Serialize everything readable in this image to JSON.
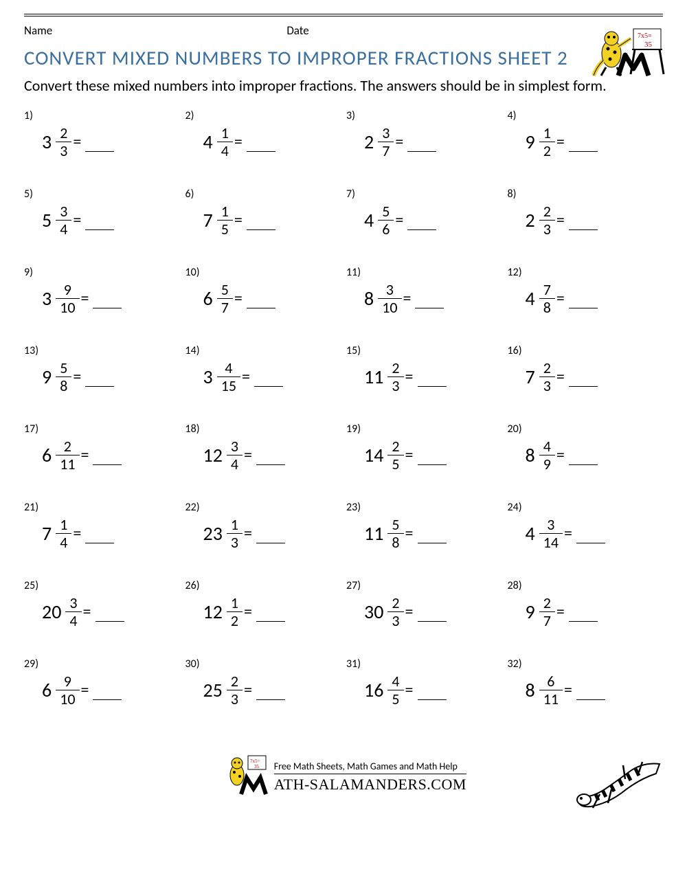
{
  "header": {
    "name_label": "Name",
    "date_label": "Date"
  },
  "title": "CONVERT MIXED NUMBERS TO IMPROPER FRACTIONS SHEET 2",
  "title_color": "#3b6fa0",
  "instructions": "Convert these mixed numbers into improper fractions. The answers should be in simplest form.",
  "columns": 4,
  "text_color": "#000000",
  "background_color": "#ffffff",
  "fontsize": {
    "title": 29,
    "body": 22,
    "whole": 28,
    "fraction": 22,
    "problem_number": 16
  },
  "problems": [
    {
      "n": 1,
      "whole": 3,
      "num": 2,
      "den": 3
    },
    {
      "n": 2,
      "whole": 4,
      "num": 1,
      "den": 4
    },
    {
      "n": 3,
      "whole": 2,
      "num": 3,
      "den": 7
    },
    {
      "n": 4,
      "whole": 9,
      "num": 1,
      "den": 2
    },
    {
      "n": 5,
      "whole": 5,
      "num": 3,
      "den": 4
    },
    {
      "n": 6,
      "whole": 7,
      "num": 1,
      "den": 5
    },
    {
      "n": 7,
      "whole": 4,
      "num": 5,
      "den": 6
    },
    {
      "n": 8,
      "whole": 2,
      "num": 2,
      "den": 3
    },
    {
      "n": 9,
      "whole": 3,
      "num": 9,
      "den": 10
    },
    {
      "n": 10,
      "whole": 6,
      "num": 5,
      "den": 7
    },
    {
      "n": 11,
      "whole": 8,
      "num": 3,
      "den": 10
    },
    {
      "n": 12,
      "whole": 4,
      "num": 7,
      "den": 8
    },
    {
      "n": 13,
      "whole": 9,
      "num": 5,
      "den": 8
    },
    {
      "n": 14,
      "whole": 3,
      "num": 4,
      "den": 15
    },
    {
      "n": 15,
      "whole": 11,
      "num": 2,
      "den": 3
    },
    {
      "n": 16,
      "whole": 7,
      "num": 2,
      "den": 3
    },
    {
      "n": 17,
      "whole": 6,
      "num": 2,
      "den": 11
    },
    {
      "n": 18,
      "whole": 12,
      "num": 3,
      "den": 4
    },
    {
      "n": 19,
      "whole": 14,
      "num": 2,
      "den": 5
    },
    {
      "n": 20,
      "whole": 8,
      "num": 4,
      "den": 9
    },
    {
      "n": 21,
      "whole": 7,
      "num": 1,
      "den": 4
    },
    {
      "n": 22,
      "whole": 23,
      "num": 1,
      "den": 3
    },
    {
      "n": 23,
      "whole": 11,
      "num": 5,
      "den": 8
    },
    {
      "n": 24,
      "whole": 4,
      "num": 3,
      "den": 14
    },
    {
      "n": 25,
      "whole": 20,
      "num": 3,
      "den": 4
    },
    {
      "n": 26,
      "whole": 12,
      "num": 1,
      "den": 2
    },
    {
      "n": 27,
      "whole": 30,
      "num": 2,
      "den": 3
    },
    {
      "n": 28,
      "whole": 9,
      "num": 2,
      "den": 7
    },
    {
      "n": 29,
      "whole": 6,
      "num": 9,
      "den": 10
    },
    {
      "n": 30,
      "whole": 25,
      "num": 2,
      "den": 3
    },
    {
      "n": 31,
      "whole": 16,
      "num": 4,
      "den": 5
    },
    {
      "n": 32,
      "whole": 8,
      "num": 6,
      "den": 11
    }
  ],
  "footer": {
    "line1": "Free Math Sheets, Math Games and Math Help",
    "line2": "ATH-SALAMANDERS.COM"
  },
  "logo": {
    "salamander_color": "#f2d024",
    "salamander_spot_color": "#000000",
    "board_formula": "7x5=35",
    "gecko_color": "#ffffff",
    "gecko_stripe_color": "#000000"
  }
}
